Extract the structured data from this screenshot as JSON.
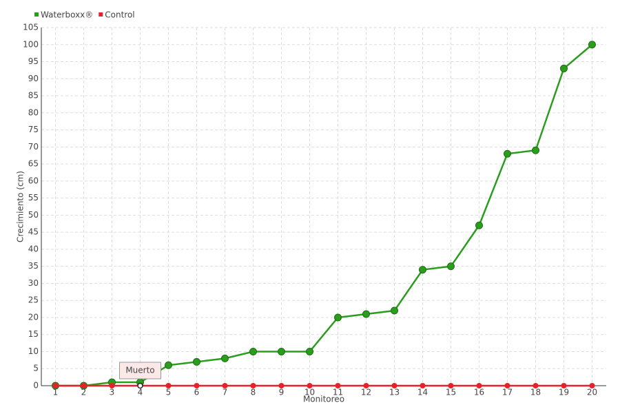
{
  "chart_data": {
    "type": "line",
    "categories": [
      "1",
      "2",
      "3",
      "4",
      "5",
      "6",
      "7",
      "8",
      "9",
      "10",
      "11",
      "12",
      "13",
      "14",
      "15",
      "16",
      "17",
      "18",
      "19",
      "20"
    ],
    "series": [
      {
        "name": "Waterboxx®",
        "color": "#2a9d1c",
        "values": [
          0,
          0,
          1,
          1,
          6,
          7,
          8,
          10,
          10,
          10,
          20,
          21,
          22,
          34,
          35,
          47,
          68,
          69,
          93,
          100
        ]
      },
      {
        "name": "Control",
        "color": "#e8202a",
        "values": [
          0,
          0,
          0,
          0,
          0,
          0,
          0,
          0,
          0,
          0,
          0,
          0,
          0,
          0,
          0,
          0,
          0,
          0,
          0,
          0
        ]
      }
    ],
    "x_label": "Monitoreo",
    "y_label": "Crecimiento (cm)",
    "ylim": [
      0,
      105
    ],
    "yticks": [
      0,
      5,
      10,
      15,
      20,
      25,
      30,
      35,
      40,
      45,
      50,
      55,
      60,
      65,
      70,
      75,
      80,
      85,
      90,
      95,
      100,
      105
    ],
    "grid": true,
    "annotations": [
      {
        "label": "Muerto",
        "series": "Control",
        "category": "4"
      }
    ]
  }
}
